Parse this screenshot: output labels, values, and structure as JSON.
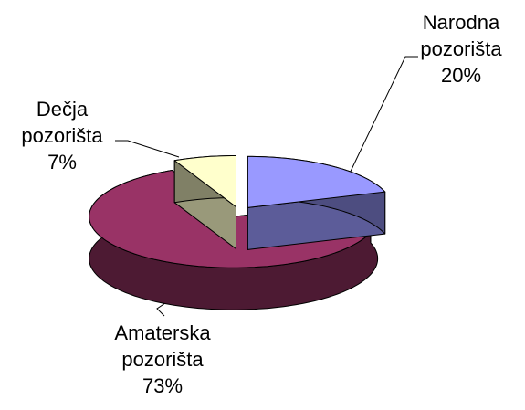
{
  "chart_data": {
    "type": "pie3d",
    "categories": [
      "Narodna pozorišta",
      "Amaterska pozorišta",
      "Dečja pozorišta"
    ],
    "values": [
      20,
      73,
      7
    ],
    "value_labels": [
      "20%",
      "73%",
      "7%"
    ],
    "colors": [
      "#9999ff",
      "#993366",
      "#ffffcc"
    ]
  }
}
